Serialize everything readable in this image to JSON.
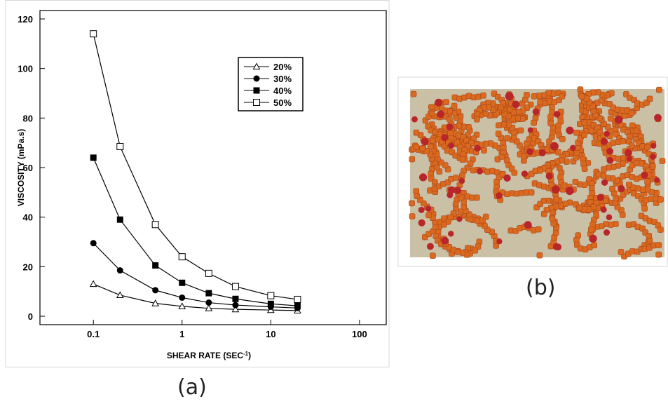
{
  "chart_data": {
    "type": "line",
    "xlabel_parts": [
      "SHEAR RATE (SEC",
      "-1",
      ")"
    ],
    "ylabel": "VISCOSITY (mPa.s)",
    "x": [
      0.1,
      0.2,
      0.5,
      1,
      2,
      4,
      10,
      20
    ],
    "series": [
      {
        "name": "20%",
        "color": "#000000",
        "marker": "open-triangle",
        "values": [
          13,
          8.5,
          5.2,
          4,
          3.2,
          2.8,
          2.5,
          2.3
        ]
      },
      {
        "name": "30%",
        "color": "#000000",
        "marker": "filled-circle",
        "values": [
          29.5,
          18.5,
          10.5,
          7.5,
          5.5,
          4.5,
          3.8,
          3.3
        ]
      },
      {
        "name": "40%",
        "color": "#000000",
        "marker": "filled-square",
        "values": [
          64,
          39,
          20.5,
          13.5,
          9.3,
          7,
          5,
          4.2
        ]
      },
      {
        "name": "50%",
        "color": "#000000",
        "marker": "open-square",
        "values": [
          114,
          68.5,
          37,
          24,
          17.3,
          12,
          8.3,
          6.8
        ]
      }
    ],
    "xscale": "log",
    "xlim": [
      0.025,
      200
    ],
    "xticks": [
      0.1,
      1,
      10,
      100
    ],
    "ylim": [
      -3.4,
      123.4
    ],
    "yticks": [
      0,
      20,
      40,
      60,
      80,
      100,
      120
    ],
    "legend": "upper-right",
    "caption": "(a)"
  },
  "image_panel": {
    "caption": "(b)"
  }
}
